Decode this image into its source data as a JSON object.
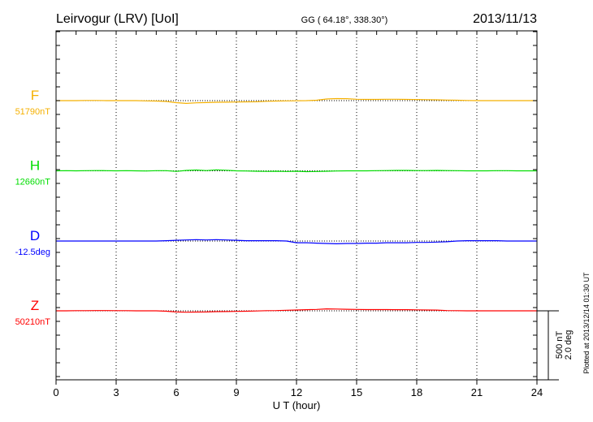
{
  "header": {
    "station": "Leirvogur (LRV)  [UoI]",
    "coords": "GG ( 64.18°, 338.30°)",
    "date": "2013/11/13"
  },
  "footer": {
    "plotted": "Plotted at 2013/12/14 01:30 UT"
  },
  "scale": {
    "nt": "500 nT",
    "deg": "2.0 deg"
  },
  "chart_data": {
    "type": "line",
    "title": "Leirvogur (LRV)  [UoI]",
    "xlabel": "U T (hour)",
    "xlim": [
      0,
      24
    ],
    "xticks": [
      "0",
      "3",
      "6",
      "9",
      "12",
      "15",
      "18",
      "21",
      "24"
    ],
    "grid": true,
    "scale_bar": {
      "nT": 500,
      "deg": 2.0
    },
    "x": [
      0,
      0.5,
      1,
      1.5,
      2,
      2.5,
      3,
      3.5,
      4,
      4.5,
      5,
      5.5,
      6,
      6.5,
      7,
      7.5,
      8,
      8.5,
      9,
      9.5,
      10,
      10.5,
      11,
      11.5,
      12,
      12.5,
      13,
      13.5,
      14,
      14.5,
      15,
      15.5,
      16,
      16.5,
      17,
      17.5,
      18,
      18.5,
      19,
      19.5,
      20,
      20.5,
      21,
      21.5,
      22,
      22.5,
      23,
      23.5,
      24
    ],
    "series": [
      {
        "name": "F",
        "baseline_label": "51790nT",
        "unit": "nT",
        "color": "#f5b000",
        "values": [
          0,
          0,
          0,
          1,
          1,
          0,
          0,
          0,
          0,
          -2,
          -3,
          -6,
          -15,
          -20,
          -16,
          -14,
          -12,
          -11,
          -10,
          -9,
          -8,
          -5,
          -3,
          -2,
          -1,
          0,
          3,
          12,
          15,
          14,
          10,
          9,
          9,
          10,
          10,
          9,
          8,
          7,
          6,
          4,
          3,
          1,
          0,
          0,
          0,
          0,
          0,
          0,
          0
        ]
      },
      {
        "name": "H",
        "baseline_label": "12660nT",
        "unit": "nT",
        "color": "#00dd00",
        "values": [
          0,
          1,
          0,
          1,
          2,
          1,
          0,
          1,
          0,
          -1,
          1,
          1,
          -4,
          3,
          6,
          2,
          7,
          4,
          0,
          -1,
          -3,
          -4,
          -3,
          -5,
          -3,
          -6,
          -5,
          -3,
          -1,
          0,
          0,
          0,
          1,
          2,
          3,
          3,
          2,
          2,
          3,
          2,
          1,
          0,
          0,
          0,
          1,
          1,
          0,
          0,
          0
        ]
      },
      {
        "name": "D",
        "baseline_label": "-12.5deg",
        "unit": "deg",
        "color": "#0000ff",
        "values": [
          0,
          0,
          0,
          0,
          0,
          0,
          0,
          0,
          0,
          0,
          0,
          0.01,
          0.02,
          0.03,
          0.04,
          0.03,
          0.04,
          0.03,
          0.02,
          0.01,
          0.01,
          0.01,
          0.01,
          0,
          -0.05,
          -0.05,
          -0.06,
          -0.07,
          -0.08,
          -0.07,
          -0.07,
          -0.06,
          -0.06,
          -0.05,
          -0.05,
          -0.05,
          -0.04,
          -0.04,
          -0.03,
          -0.02,
          0,
          0.01,
          0.01,
          0.01,
          0.01,
          0,
          0,
          0,
          0
        ]
      },
      {
        "name": "Z",
        "baseline_label": "50210nT",
        "unit": "nT",
        "color": "#ff0000",
        "values": [
          0,
          0,
          1,
          1,
          2,
          2,
          1,
          1,
          0,
          0,
          0,
          -3,
          -8,
          -10,
          -9,
          -8,
          -6,
          -5,
          -4,
          -3,
          -1,
          1,
          2,
          4,
          6,
          8,
          10,
          14,
          13,
          11,
          10,
          9,
          9,
          9,
          8,
          8,
          7,
          6,
          5,
          2,
          1,
          0,
          0,
          0,
          0,
          0,
          0,
          0,
          0
        ]
      }
    ]
  }
}
